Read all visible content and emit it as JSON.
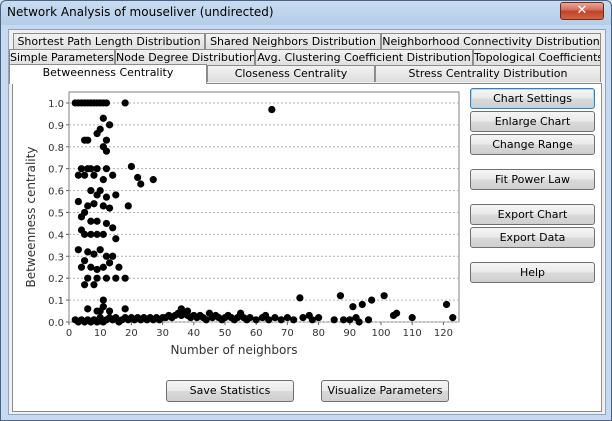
{
  "window": {
    "title": "Network Analysis of mouseliver (undirected)",
    "close_glyph": "✕"
  },
  "tabs": {
    "row1": [
      "Shortest Path Length Distribution",
      "Shared Neighbors Distribution",
      "Neighborhood Connectivity Distribution"
    ],
    "row2": [
      "Simple Parameters",
      "Node Degree Distribution",
      "Avg. Clustering Coefficient Distribution",
      "Topological Coefficients"
    ],
    "row3": [
      "Betweenness Centrality",
      "Closeness Centrality",
      "Stress Centrality Distribution"
    ],
    "active": "Betweenness Centrality"
  },
  "side_buttons": {
    "chart_settings": "Chart Settings",
    "enlarge_chart": "Enlarge Chart",
    "change_range": "Change Range",
    "fit_power_law": "Fit Power Law",
    "export_chart": "Export Chart",
    "export_data": "Export Data",
    "help": "Help"
  },
  "bottom_buttons": {
    "save_statistics": "Save Statistics",
    "visualize_parameters": "Visualize Parameters"
  },
  "chart_data": {
    "type": "scatter",
    "title": "",
    "xlabel": "Number of neighbors",
    "ylabel": "Betweenness centrality",
    "xlim": [
      0,
      125
    ],
    "ylim": [
      0,
      1.05
    ],
    "x_ticks": [
      "0",
      "10",
      "20",
      "30",
      "40",
      "50",
      "60",
      "70",
      "80",
      "90",
      "100",
      "110",
      "120"
    ],
    "y_ticks": [
      "0.0",
      "0.1",
      "0.2",
      "0.3",
      "0.4",
      "0.5",
      "0.6",
      "0.7",
      "0.8",
      "0.9",
      "1.0"
    ],
    "grid": true,
    "point_color": "#000000",
    "points": [
      [
        2,
        1.0
      ],
      [
        3,
        1.0
      ],
      [
        4,
        1.0
      ],
      [
        5,
        1.0
      ],
      [
        6,
        1.0
      ],
      [
        7,
        1.0
      ],
      [
        8,
        1.0
      ],
      [
        9,
        1.0
      ],
      [
        10,
        1.0
      ],
      [
        11,
        1.0
      ],
      [
        12,
        1.0
      ],
      [
        18,
        1.0
      ],
      [
        11,
        0.93
      ],
      [
        13,
        0.9
      ],
      [
        10,
        0.88
      ],
      [
        9,
        0.86
      ],
      [
        12,
        0.83
      ],
      [
        5,
        0.83
      ],
      [
        6,
        0.83
      ],
      [
        11,
        0.8
      ],
      [
        12,
        0.78
      ],
      [
        4,
        0.7
      ],
      [
        6,
        0.7
      ],
      [
        7,
        0.7
      ],
      [
        9,
        0.7
      ],
      [
        12,
        0.7
      ],
      [
        3,
        0.67
      ],
      [
        5,
        0.67
      ],
      [
        8,
        0.67
      ],
      [
        11,
        0.65
      ],
      [
        14,
        0.67
      ],
      [
        20,
        0.71
      ],
      [
        22,
        0.66
      ],
      [
        23,
        0.63
      ],
      [
        27,
        0.65
      ],
      [
        7,
        0.6
      ],
      [
        9,
        0.58
      ],
      [
        10,
        0.6
      ],
      [
        12,
        0.57
      ],
      [
        15,
        0.58
      ],
      [
        3,
        0.55
      ],
      [
        5,
        0.5
      ],
      [
        6,
        0.53
      ],
      [
        8,
        0.54
      ],
      [
        11,
        0.53
      ],
      [
        13,
        0.52
      ],
      [
        19,
        0.53
      ],
      [
        4,
        0.48
      ],
      [
        7,
        0.46
      ],
      [
        9,
        0.46
      ],
      [
        12,
        0.45
      ],
      [
        14,
        0.43
      ],
      [
        4,
        0.42
      ],
      [
        5,
        0.4
      ],
      [
        7,
        0.4
      ],
      [
        9,
        0.4
      ],
      [
        11,
        0.4
      ],
      [
        15,
        0.38
      ],
      [
        3,
        0.33
      ],
      [
        6,
        0.32
      ],
      [
        8,
        0.31
      ],
      [
        10,
        0.33
      ],
      [
        12,
        0.3
      ],
      [
        14,
        0.3
      ],
      [
        5,
        0.28
      ],
      [
        7,
        0.25
      ],
      [
        9,
        0.24
      ],
      [
        11,
        0.25
      ],
      [
        13,
        0.27
      ],
      [
        16,
        0.25
      ],
      [
        4,
        0.25
      ],
      [
        6,
        0.2
      ],
      [
        9,
        0.2
      ],
      [
        12,
        0.2
      ],
      [
        15,
        0.2
      ],
      [
        18,
        0.2
      ],
      [
        5,
        0.17
      ],
      [
        8,
        0.17
      ],
      [
        11,
        0.1
      ],
      [
        11,
        0.07
      ],
      [
        6,
        0.06
      ],
      [
        9,
        0.05
      ],
      [
        10,
        0.05
      ],
      [
        13,
        0.05
      ],
      [
        18,
        0.06
      ],
      [
        65,
        0.97
      ],
      [
        74,
        0.11
      ],
      [
        87,
        0.12
      ],
      [
        91,
        0.07
      ],
      [
        94,
        0.08
      ],
      [
        97,
        0.1
      ],
      [
        101,
        0.12
      ],
      [
        104,
        0.03
      ],
      [
        105,
        0.04
      ],
      [
        121,
        0.08
      ],
      [
        123,
        0.02
      ],
      [
        36,
        0.06
      ],
      [
        38,
        0.05
      ],
      [
        45,
        0.04
      ],
      [
        55,
        0.04
      ],
      [
        63,
        0.03
      ],
      [
        77,
        0.03
      ],
      [
        85,
        0.01
      ],
      [
        92,
        0.02
      ],
      [
        110,
        0.02
      ],
      [
        2,
        0.01
      ],
      [
        3,
        0.0
      ],
      [
        4,
        0.01
      ],
      [
        5,
        0.0
      ],
      [
        6,
        0.01
      ],
      [
        7,
        0.0
      ],
      [
        8,
        0.01
      ],
      [
        9,
        0.0
      ],
      [
        10,
        0.02
      ],
      [
        11,
        0.0
      ],
      [
        12,
        0.01
      ],
      [
        13,
        0.02
      ],
      [
        14,
        0.01
      ],
      [
        15,
        0.02
      ],
      [
        16,
        0.0
      ],
      [
        17,
        0.01
      ],
      [
        18,
        0.02
      ],
      [
        19,
        0.01
      ],
      [
        20,
        0.02
      ],
      [
        21,
        0.01
      ],
      [
        22,
        0.02
      ],
      [
        23,
        0.01
      ],
      [
        24,
        0.02
      ],
      [
        25,
        0.01
      ],
      [
        26,
        0.02
      ],
      [
        27,
        0.01
      ],
      [
        28,
        0.02
      ],
      [
        29,
        0.01
      ],
      [
        30,
        0.02
      ],
      [
        31,
        0.02
      ],
      [
        32,
        0.03
      ],
      [
        33,
        0.02
      ],
      [
        34,
        0.03
      ],
      [
        35,
        0.04
      ],
      [
        36,
        0.03
      ],
      [
        37,
        0.04
      ],
      [
        38,
        0.03
      ],
      [
        39,
        0.02
      ],
      [
        40,
        0.03
      ],
      [
        41,
        0.02
      ],
      [
        42,
        0.03
      ],
      [
        43,
        0.02
      ],
      [
        44,
        0.01
      ],
      [
        46,
        0.02
      ],
      [
        47,
        0.03
      ],
      [
        48,
        0.02
      ],
      [
        49,
        0.01
      ],
      [
        50,
        0.02
      ],
      [
        51,
        0.03
      ],
      [
        52,
        0.02
      ],
      [
        53,
        0.01
      ],
      [
        54,
        0.02
      ],
      [
        56,
        0.02
      ],
      [
        57,
        0.01
      ],
      [
        58,
        0.02
      ],
      [
        60,
        0.01
      ],
      [
        62,
        0.02
      ],
      [
        64,
        0.01
      ],
      [
        66,
        0.02
      ],
      [
        68,
        0.01
      ],
      [
        70,
        0.02
      ],
      [
        72,
        0.01
      ],
      [
        75,
        0.02
      ],
      [
        78,
        0.01
      ],
      [
        80,
        0.02
      ],
      [
        88,
        0.01
      ],
      [
        90,
        0.01
      ],
      [
        93,
        0.0
      ],
      [
        96,
        0.01
      ]
    ]
  }
}
